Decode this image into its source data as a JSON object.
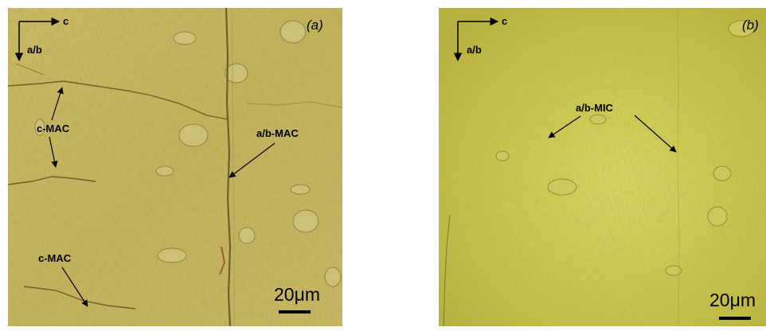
{
  "panels": [
    {
      "id": "a",
      "tag": "(a)",
      "axis_horizontal": "c",
      "axis_vertical": "a/b",
      "annotations": [
        "c-MAC",
        "a/b-MAC",
        "c-MAC"
      ],
      "scale_bar": "20μm",
      "colors": {
        "base": "#c2b25a",
        "light": "#cdbf6e",
        "dark": "#8e7e3c"
      }
    },
    {
      "id": "b",
      "tag": "(b)",
      "axis_horizontal": "c",
      "axis_vertical": "a/b",
      "annotations": [
        "a/b-MIC"
      ],
      "scale_bar": "20μm",
      "colors": {
        "base": "#bdb940",
        "light": "#d2cf5c",
        "dark": "#8f8a2e"
      }
    }
  ]
}
